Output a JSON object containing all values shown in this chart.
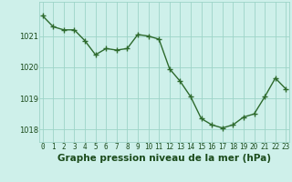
{
  "x": [
    0,
    1,
    2,
    3,
    4,
    5,
    6,
    7,
    8,
    9,
    10,
    11,
    12,
    13,
    14,
    15,
    16,
    17,
    18,
    19,
    20,
    21,
    22,
    23
  ],
  "y": [
    1021.65,
    1021.3,
    1021.2,
    1021.2,
    1020.85,
    1020.4,
    1020.6,
    1020.55,
    1020.6,
    1021.05,
    1021.0,
    1020.9,
    1019.95,
    1019.55,
    1019.05,
    1018.35,
    1018.15,
    1018.05,
    1018.15,
    1018.4,
    1018.5,
    1019.05,
    1019.65,
    1019.3
  ],
  "line_color": "#2d6a2d",
  "marker": "+",
  "marker_size": 4,
  "marker_linewidth": 1.0,
  "linewidth": 1.0,
  "background_color": "#cef0ea",
  "grid_color": "#9dd4c8",
  "grid_linewidth": 0.6,
  "xlabel": "Graphe pression niveau de la mer (hPa)",
  "xlabel_color": "#1a4a1a",
  "xlabel_fontsize": 7.5,
  "tick_color": "#1a4a1a",
  "tick_fontsize": 5.5,
  "ytick_fontsize": 6.0,
  "ylim": [
    1017.6,
    1022.1
  ],
  "yticks": [
    1018,
    1019,
    1020,
    1021
  ],
  "xticks": [
    0,
    1,
    2,
    3,
    4,
    5,
    6,
    7,
    8,
    9,
    10,
    11,
    12,
    13,
    14,
    15,
    16,
    17,
    18,
    19,
    20,
    21,
    22,
    23
  ],
  "xlim": [
    -0.3,
    23.3
  ]
}
